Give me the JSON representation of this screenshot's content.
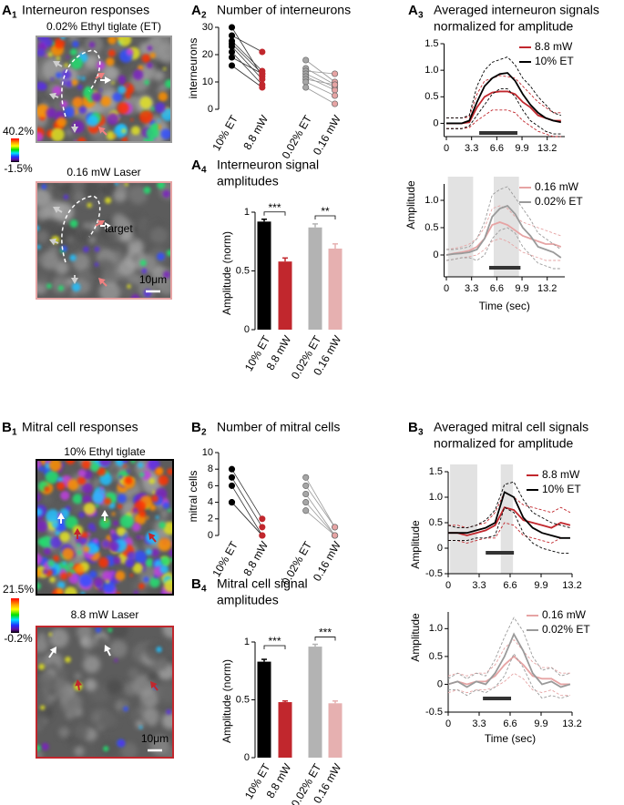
{
  "image_panels": [
    {
      "panel": "A",
      "panel_index": "1",
      "title": "Interneuron responses",
      "colorbar": {
        "max": "40.2%",
        "min": "-1.5%"
      },
      "images": [
        {
          "caption": "0.02% Ethyl tiglate (ET)"
        },
        {
          "caption": "0.16 mW Laser",
          "target": "target",
          "scale": "10μm"
        }
      ]
    },
    {
      "panel": "B",
      "panel_index": "1",
      "title": "Mitral cell responses",
      "colorbar": {
        "max": "21.5%",
        "min": "-0.2%"
      },
      "images": [
        {
          "caption": "10% Ethyl tiglate"
        },
        {
          "caption": "8.8 mW Laser",
          "scale": "10μm"
        }
      ]
    }
  ],
  "chart_data": [
    {
      "type": "dot",
      "panel": "A",
      "panel_index": "2",
      "title": [
        "Number of interneurons"
      ],
      "ylabel": "interneurons",
      "categories": [
        "10% ET",
        "8.8 mW",
        "0.02% ET",
        "0.16 mW"
      ],
      "colors": [
        "#000000",
        "#c1272d",
        "#a6a6a6",
        "#e6a4a4"
      ],
      "paired": true,
      "values": [
        [
          30,
          27,
          25,
          24,
          23,
          21,
          19,
          16
        ],
        [
          12,
          21,
          14,
          13,
          11,
          9,
          13,
          8
        ],
        [
          18,
          15,
          14,
          13,
          12,
          11,
          10,
          8
        ],
        [
          10,
          9,
          13,
          8,
          7,
          9,
          5,
          2
        ]
      ],
      "ylim": [
        0,
        32
      ],
      "yticks": [
        0,
        10,
        20,
        30
      ]
    },
    {
      "type": "bar",
      "panel": "A",
      "panel_index": "4",
      "title": [
        "Interneuron signal",
        "amplitudes"
      ],
      "ylabel": "Amplitude (norm)",
      "categories": [
        "10% ET",
        "8.8 mW",
        "0.02% ET",
        "0.16 mW"
      ],
      "colors": [
        "#000000",
        "#c1272d",
        "#b3b3b3",
        "#e6b0b0"
      ],
      "values": [
        0.92,
        0.58,
        0.87,
        0.69
      ],
      "errors": [
        0.02,
        0.03,
        0.03,
        0.04
      ],
      "annotations": [
        {
          "text": "***",
          "between": [
            0,
            1
          ]
        },
        {
          "text": "**",
          "between": [
            2,
            3
          ]
        }
      ],
      "ylim": [
        0,
        1
      ],
      "yticks": [
        0,
        0.5,
        1
      ]
    },
    {
      "type": "line",
      "panel": "A",
      "panel_index": "3",
      "title": [
        "Averaged interneuron signals",
        "normalized for amplitude"
      ],
      "ylabel": "Amplitude",
      "x": [
        0,
        1,
        2,
        3,
        4,
        5,
        6,
        7,
        8,
        9,
        10,
        11,
        12,
        13,
        14,
        15
      ],
      "series": [
        {
          "name": "8.8 mW",
          "color": "#c1272d",
          "values": [
            0,
            0,
            0,
            0.02,
            0.3,
            0.5,
            0.58,
            0.6,
            0.6,
            0.55,
            0.4,
            0.3,
            0.15,
            0.1,
            0.05,
            0.05
          ],
          "lower": [
            -0.1,
            -0.1,
            -0.1,
            -0.08,
            0.05,
            0.15,
            0.25,
            0.25,
            0.25,
            0.2,
            0.05,
            -0.05,
            -0.15,
            -0.2,
            -0.25,
            -0.25
          ],
          "upper": [
            0.1,
            0.1,
            0.1,
            0.12,
            0.55,
            0.8,
            0.85,
            0.9,
            0.88,
            0.85,
            0.7,
            0.55,
            0.4,
            0.3,
            0.2,
            0.2
          ]
        },
        {
          "name": "10% ET",
          "color": "#000000",
          "values": [
            0,
            0,
            0,
            0.05,
            0.4,
            0.7,
            0.85,
            0.93,
            0.95,
            0.8,
            0.55,
            0.35,
            0.2,
            0.1,
            0.05,
            0.02
          ],
          "lower": [
            -0.1,
            -0.1,
            -0.1,
            -0.05,
            0.15,
            0.35,
            0.55,
            0.65,
            0.65,
            0.5,
            0.25,
            0.05,
            -0.05,
            -0.15,
            -0.2,
            -0.2
          ],
          "upper": [
            0.1,
            0.1,
            0.1,
            0.15,
            0.7,
            1.0,
            1.15,
            1.2,
            1.25,
            1.1,
            0.85,
            0.7,
            0.5,
            0.35,
            0.2,
            0.15
          ]
        }
      ],
      "stimulus": [
        4.3,
        9.3
      ],
      "xlim": [
        -0.3,
        15.5
      ],
      "xticks": [
        0,
        3.3,
        6.6,
        9.9,
        13.2
      ],
      "ylim": [
        -0.25,
        1.5
      ],
      "yticks": [
        0,
        0.5,
        {
          "value": 1,
          "label": "1.0"
        },
        1.5
      ],
      "legend": "upper right"
    },
    {
      "type": "line",
      "xlabel": "Time (sec)",
      "x": [
        0,
        1,
        2,
        3,
        4,
        5,
        6,
        7,
        8,
        9,
        10,
        11,
        12,
        13,
        14,
        15
      ],
      "series": [
        {
          "name": "0.16 mW",
          "color": "#e6a4a4",
          "values": [
            0,
            0.03,
            0.05,
            0.08,
            0.15,
            0.3,
            0.55,
            0.6,
            0.55,
            0.45,
            0.35,
            0.3,
            0.25,
            0.2,
            0.2,
            0.15
          ],
          "lower": [
            -0.1,
            -0.08,
            -0.05,
            -0.03,
            0,
            0.1,
            0.25,
            0.3,
            0.25,
            0.15,
            0.05,
            0,
            -0.05,
            -0.1,
            -0.1,
            -0.1
          ],
          "upper": [
            0.1,
            0.12,
            0.15,
            0.2,
            0.3,
            0.5,
            0.85,
            0.9,
            0.85,
            0.7,
            0.6,
            0.55,
            0.5,
            0.45,
            0.4,
            0.35
          ]
        },
        {
          "name": "0.02% ET",
          "color": "#9a9a9a",
          "values": [
            0,
            0.02,
            0.03,
            0.05,
            0.1,
            0.3,
            0.7,
            0.85,
            0.9,
            0.75,
            0.5,
            0.35,
            0.15,
            0.1,
            0.05,
            -0.05
          ],
          "lower": [
            -0.1,
            -0.08,
            -0.05,
            -0.05,
            -0.1,
            0,
            0.3,
            0.45,
            0.5,
            0.4,
            0.15,
            0,
            -0.15,
            -0.2,
            -0.25,
            -0.25
          ],
          "upper": [
            0.1,
            0.1,
            0.12,
            0.15,
            0.3,
            0.6,
            1.1,
            1.2,
            1.25,
            1.05,
            0.85,
            0.65,
            0.4,
            0.3,
            0.2,
            0.1
          ]
        }
      ],
      "shading": [
        [
          0.2,
          3.5
        ],
        [
          6.2,
          9.5
        ]
      ],
      "stimulus": [
        5.6,
        9.7
      ],
      "xlim": [
        -0.3,
        15.5
      ],
      "xticks": [
        0,
        3.3,
        6.6,
        9.9,
        13.2
      ],
      "ylim": [
        -0.4,
        1.3
      ],
      "yticks": [
        0,
        0.5,
        {
          "value": 1,
          "label": "1.0"
        }
      ],
      "legend": "upper right"
    },
    {
      "type": "dot",
      "panel": "B",
      "panel_index": "2",
      "title": [
        "Number of mitral cells"
      ],
      "ylabel": "mitral cells",
      "categories": [
        "10% ET",
        "8.8 mW",
        "0.02% ET",
        "0.16 mW"
      ],
      "colors": [
        "#000000",
        "#c1272d",
        "#a6a6a6",
        "#e6a4a4"
      ],
      "paired": true,
      "values": [
        [
          8,
          7,
          6,
          4,
          4
        ],
        [
          2,
          1,
          0,
          0,
          0
        ],
        [
          7,
          6,
          5,
          4,
          3
        ],
        [
          1,
          1,
          0,
          0,
          0
        ]
      ],
      "ylim": [
        0,
        10
      ],
      "yticks": [
        0,
        2,
        4,
        6,
        8,
        10
      ]
    },
    {
      "type": "bar",
      "panel": "B",
      "panel_index": "4",
      "title": [
        "Mitral cell signal",
        "amplitudes"
      ],
      "ylabel": "Amplitude (norm)",
      "categories": [
        "10% ET",
        "8.8 mW",
        "0.02% ET",
        "0.16 mW"
      ],
      "colors": [
        "#000000",
        "#c1272d",
        "#b3b3b3",
        "#e6b0b0"
      ],
      "values": [
        0.83,
        0.48,
        0.96,
        0.47
      ],
      "errors": [
        0.02,
        0.01,
        0.02,
        0.02
      ],
      "annotations": [
        {
          "text": "***",
          "between": [
            0,
            1
          ]
        },
        {
          "text": "***",
          "between": [
            2,
            3
          ]
        }
      ],
      "ylim": [
        0,
        1
      ],
      "yticks": [
        0,
        0.5,
        1
      ]
    },
    {
      "type": "line",
      "panel": "B",
      "panel_index": "3",
      "title": [
        "Averaged mitral cell signals",
        "normalized for amplitude"
      ],
      "ylabel": "Amplitude",
      "x": [
        0,
        1,
        2,
        3,
        4,
        5,
        6,
        7,
        8,
        9,
        10,
        11,
        12,
        13
      ],
      "series": [
        {
          "name": "8.8 mW",
          "color": "#c1272d",
          "values": [
            0.3,
            0.3,
            0.25,
            0.3,
            0.35,
            0.45,
            0.8,
            0.75,
            0.55,
            0.5,
            0.45,
            0.4,
            0.5,
            0.45
          ],
          "lower": [
            0.15,
            0.15,
            0.1,
            0.15,
            0.2,
            0.2,
            0.5,
            0.45,
            0.25,
            0.2,
            0.15,
            0.1,
            0.2,
            0.2
          ],
          "upper": [
            0.45,
            0.45,
            0.4,
            0.45,
            0.5,
            0.7,
            1.1,
            1.0,
            0.85,
            0.8,
            0.75,
            0.7,
            0.8,
            0.7
          ]
        },
        {
          "name": "10% ET",
          "color": "#000000",
          "values": [
            0.3,
            0.3,
            0.3,
            0.35,
            0.4,
            0.5,
            1.1,
            1.0,
            0.6,
            0.4,
            0.3,
            0.25,
            0.2,
            0.2
          ],
          "lower": [
            0.15,
            0.15,
            0.15,
            0.2,
            0.2,
            0.25,
            0.8,
            0.7,
            0.3,
            0.1,
            0,
            -0.05,
            -0.1,
            -0.1
          ],
          "upper": [
            0.45,
            0.4,
            0.4,
            0.45,
            0.55,
            0.75,
            1.25,
            1.3,
            0.95,
            0.7,
            0.6,
            0.5,
            0.45,
            0.4
          ]
        }
      ],
      "shading": [
        [
          0.2,
          3.1
        ],
        [
          5.6,
          6.9
        ]
      ],
      "stimulus": [
        4.0,
        7.0
      ],
      "xlim": [
        0,
        13.2
      ],
      "xticks": [
        0,
        3.3,
        6.6,
        9.9,
        13.2
      ],
      "ylim": [
        -0.5,
        1.5
      ],
      "yticks": [
        -0.5,
        0,
        0.5,
        {
          "value": 1,
          "label": "1.0"
        },
        1.5
      ],
      "legend": "upper right"
    },
    {
      "type": "line",
      "ylabel": "Amplitude",
      "xlabel": "Time (sec)",
      "x": [
        0,
        1,
        2,
        3,
        4,
        5,
        6,
        7,
        8,
        9,
        10,
        11,
        12,
        13
      ],
      "series": [
        {
          "name": "0.16 mW",
          "color": "#e6a4a4",
          "values": [
            0,
            0.05,
            0,
            0.05,
            0.05,
            0.15,
            0.35,
            0.5,
            0.35,
            0.15,
            0.1,
            0.1,
            0,
            0
          ],
          "lower": [
            -0.15,
            -0.1,
            -0.15,
            -0.1,
            -0.1,
            -0.05,
            0.05,
            0.2,
            0.1,
            -0.1,
            -0.15,
            -0.1,
            -0.2,
            -0.2
          ],
          "upper": [
            0.15,
            0.2,
            0.15,
            0.2,
            0.2,
            0.35,
            0.65,
            0.8,
            0.6,
            0.4,
            0.3,
            0.3,
            0.2,
            0.2
          ]
        },
        {
          "name": "0.02% ET",
          "color": "#9a9a9a",
          "values": [
            0,
            0.05,
            -0.05,
            0.05,
            0,
            0.2,
            0.5,
            0.9,
            0.6,
            0.2,
            0,
            0.05,
            -0.05,
            0
          ],
          "lower": [
            -0.1,
            -0.1,
            -0.2,
            -0.1,
            -0.15,
            -0.05,
            0.15,
            0.55,
            0.3,
            -0.05,
            -0.25,
            -0.2,
            -0.25,
            -0.2
          ],
          "upper": [
            0.1,
            0.2,
            0.1,
            0.2,
            0.15,
            0.45,
            0.85,
            1.2,
            0.95,
            0.5,
            0.25,
            0.3,
            0.15,
            0.2
          ]
        }
      ],
      "stimulus": [
        3.7,
        6.7
      ],
      "xlim": [
        0,
        13.2
      ],
      "xticks": [
        0,
        3.3,
        6.6,
        9.9,
        13.2
      ],
      "ylim": [
        -0.5,
        1.3
      ],
      "yticks": [
        -0.5,
        0,
        0.5,
        {
          "value": 1,
          "label": "1.0"
        }
      ],
      "legend": "upper right"
    }
  ]
}
